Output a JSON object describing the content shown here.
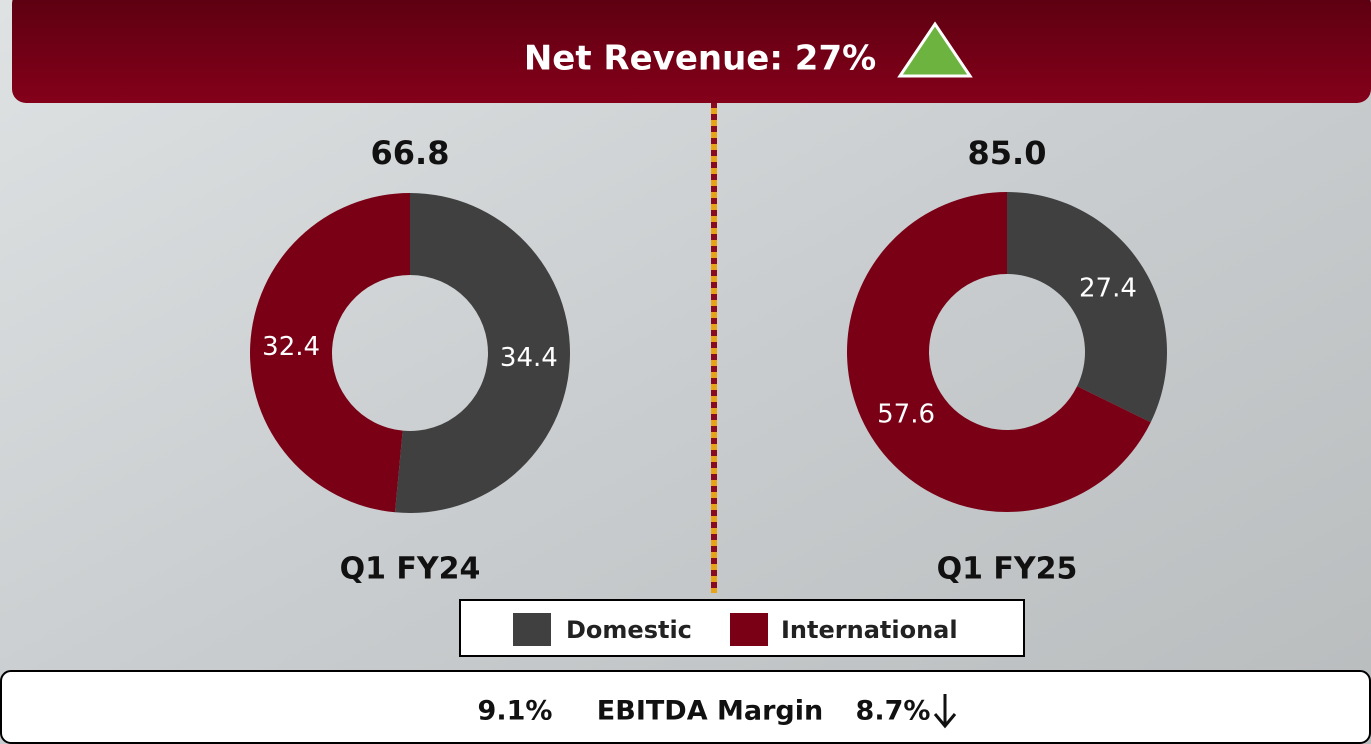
{
  "header": {
    "title": "Net Revenue: 27%"
  },
  "chart_data": [
    {
      "type": "donut",
      "title": "66.8",
      "xlabel": "Q1 FY24",
      "categories": [
        "Domestic",
        "International"
      ],
      "values": [
        34.4,
        32.4
      ],
      "colors": [
        "#404040",
        "#7a0016"
      ]
    },
    {
      "type": "donut",
      "title": "85.0",
      "xlabel": "Q1 FY25",
      "categories": [
        "Domestic",
        "International"
      ],
      "values": [
        27.4,
        57.6
      ],
      "colors": [
        "#404040",
        "#7a0016"
      ]
    }
  ],
  "footer": {
    "left": "9.1%",
    "label": "EBITDA Margin",
    "right": "8.7%"
  }
}
